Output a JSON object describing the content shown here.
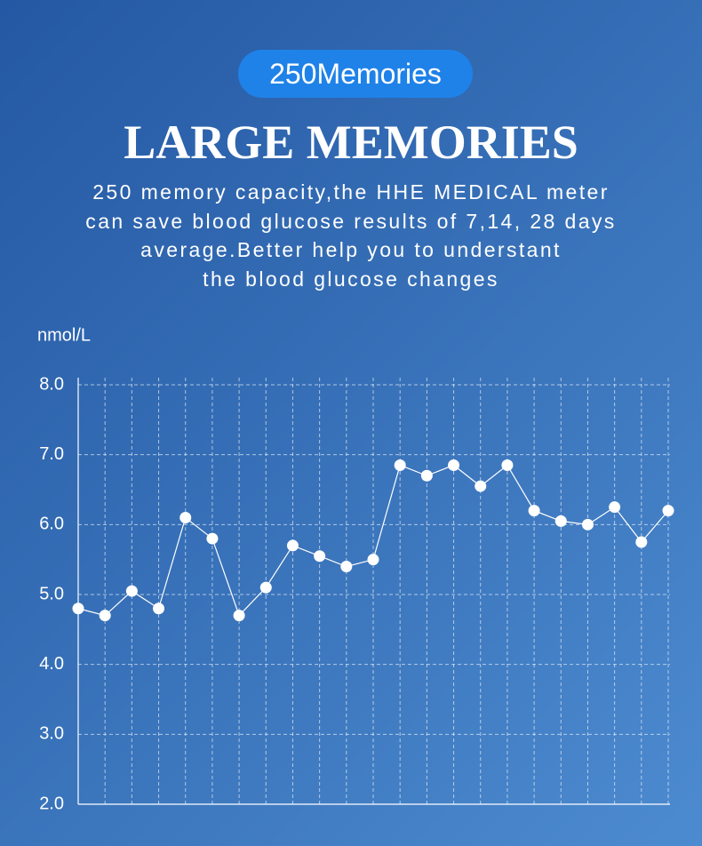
{
  "chart_data": {
    "type": "line",
    "badge": "250Memories",
    "title": "LARGE MEMORIES",
    "description": [
      "250 memory capacity,the HHE MEDICAL meter",
      "can save blood glucose results of 7,14, 28 days",
      "average.Better help you to understant",
      "the blood glucose changes"
    ],
    "y_label": "nmol/L",
    "categories": [
      null,
      null,
      null,
      null,
      null,
      null,
      null,
      null,
      null,
      null,
      null,
      null,
      null,
      null,
      null,
      null,
      null,
      null,
      null,
      null,
      null,
      null,
      null
    ],
    "series": [
      {
        "name": null,
        "color": "#ffffff",
        "values": [
          4.8,
          4.7,
          5.05,
          4.8,
          6.1,
          5.8,
          4.7,
          5.1,
          5.7,
          5.55,
          5.4,
          5.5,
          6.85,
          6.7,
          6.85,
          6.55,
          6.85,
          6.2,
          6.05,
          6.0,
          6.25,
          5.75,
          6.2
        ]
      }
    ],
    "ylim": [
      2,
      8
    ],
    "yticks": [
      {
        "value": 2,
        "label": "2.0"
      },
      {
        "value": 3,
        "label": "3.0"
      },
      {
        "value": 4,
        "label": "4.0"
      },
      {
        "value": 5,
        "label": "5.0"
      },
      {
        "value": 6,
        "label": "6.0"
      },
      {
        "value": 7,
        "label": "7.0"
      },
      {
        "value": 8,
        "label": "8.0"
      }
    ],
    "grid": true
  }
}
